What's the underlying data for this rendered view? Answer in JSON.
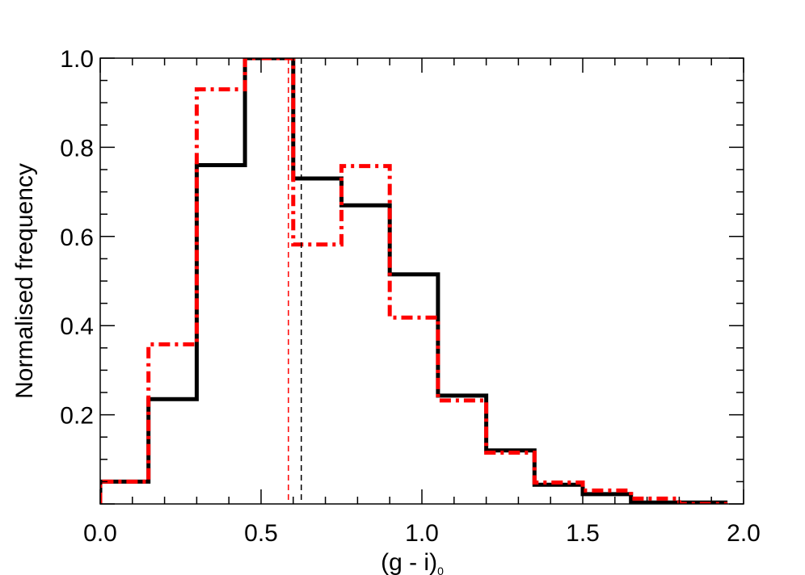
{
  "chart_data": {
    "type": "histogram",
    "xlabel": "(g - i)",
    "xlabel_subscript": "0",
    "ylabel": "Normalised frequency",
    "xlim": [
      0.0,
      2.0
    ],
    "ylim": [
      0.0,
      1.0
    ],
    "x_ticks": [
      {
        "value": 0.0,
        "label": "0.0"
      },
      {
        "value": 0.5,
        "label": "0.5"
      },
      {
        "value": 1.0,
        "label": "1.0"
      },
      {
        "value": 1.5,
        "label": "1.5"
      },
      {
        "value": 2.0,
        "label": "2.0"
      }
    ],
    "y_ticks": [
      {
        "value": 0.2,
        "label": "0.2"
      },
      {
        "value": 0.4,
        "label": "0.4"
      },
      {
        "value": 0.6,
        "label": "0.6"
      },
      {
        "value": 0.8,
        "label": "0.8"
      },
      {
        "value": 1.0,
        "label": "1.0"
      }
    ],
    "bin_edges": [
      0.0,
      0.15,
      0.3,
      0.45,
      0.6,
      0.75,
      0.9,
      1.05,
      1.2,
      1.35,
      1.5,
      1.65,
      1.8,
      1.95
    ],
    "series": [
      {
        "style": "solid",
        "color": "#000000",
        "values": [
          0.05,
          0.235,
          0.76,
          1.0,
          0.73,
          0.67,
          0.515,
          0.243,
          0.12,
          0.043,
          0.022,
          0.003,
          0.003
        ]
      },
      {
        "style": "dash-dot",
        "color": "#ff0000",
        "values": [
          0.05,
          0.358,
          0.93,
          1.0,
          0.582,
          0.758,
          0.418,
          0.232,
          0.115,
          0.048,
          0.03,
          0.012,
          0.0
        ]
      }
    ],
    "reference_lines": [
      {
        "x": 0.585,
        "color": "#ff0000",
        "style": "dashed"
      },
      {
        "x": 0.625,
        "color": "#000000",
        "style": "dashed"
      }
    ]
  }
}
